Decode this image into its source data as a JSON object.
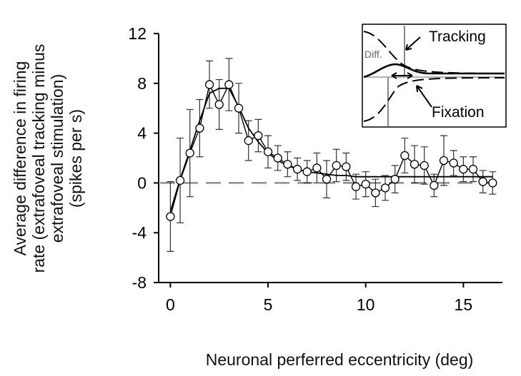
{
  "chart_data": {
    "type": "line",
    "xlabel": "Neuronal perferred eccentricity (deg)",
    "ylabel_lines": [
      "Average difference in firing",
      "rate (extrafoveal tracking minus",
      "extrafoveal stimulation)",
      "(spikes per s)"
    ],
    "xlim": [
      -0.6,
      17
    ],
    "ylim": [
      -8,
      12
    ],
    "x_ticks": [
      0,
      5,
      10,
      15
    ],
    "y_ticks": [
      -8,
      -4,
      0,
      4,
      8,
      12
    ],
    "x_tick_labels": [
      "0",
      "5",
      "10",
      "15"
    ],
    "y_tick_labels": [
      "-8",
      "-4",
      "0",
      "4",
      "8",
      "12"
    ],
    "zero_line": true,
    "series": [
      {
        "style": "points-with-error-bars",
        "points": [
          {
            "x": 0.0,
            "y": -2.7,
            "err": 2.8
          },
          {
            "x": 0.5,
            "y": 0.2,
            "err": 3.4
          },
          {
            "x": 1.0,
            "y": 2.4,
            "err": 3.5
          },
          {
            "x": 1.5,
            "y": 4.4,
            "err": 2.3
          },
          {
            "x": 2.0,
            "y": 7.9,
            "err": 1.9
          },
          {
            "x": 2.5,
            "y": 6.3,
            "err": 2.0
          },
          {
            "x": 3.0,
            "y": 7.9,
            "err": 2.1
          },
          {
            "x": 3.5,
            "y": 6.0,
            "err": 2.0
          },
          {
            "x": 4.0,
            "y": 3.4,
            "err": 1.6
          },
          {
            "x": 4.5,
            "y": 3.8,
            "err": 1.3
          },
          {
            "x": 5.0,
            "y": 2.5,
            "err": 1.3
          },
          {
            "x": 5.5,
            "y": 2.0,
            "err": 1.0
          },
          {
            "x": 6.0,
            "y": 1.5,
            "err": 1.0
          },
          {
            "x": 6.5,
            "y": 1.1,
            "err": 0.9
          },
          {
            "x": 7.0,
            "y": 0.9,
            "err": 0.9
          },
          {
            "x": 7.5,
            "y": 1.2,
            "err": 1.2
          },
          {
            "x": 8.0,
            "y": 0.3,
            "err": 1.5
          },
          {
            "x": 8.5,
            "y": 1.4,
            "err": 1.3
          },
          {
            "x": 9.0,
            "y": 1.3,
            "err": 1.1
          },
          {
            "x": 9.5,
            "y": -0.3,
            "err": 1.0
          },
          {
            "x": 10.0,
            "y": -0.1,
            "err": 1.0
          },
          {
            "x": 10.5,
            "y": -0.8,
            "err": 1.1
          },
          {
            "x": 11.0,
            "y": -0.4,
            "err": 1.0
          },
          {
            "x": 11.5,
            "y": 0.3,
            "err": 1.1
          },
          {
            "x": 12.0,
            "y": 2.2,
            "err": 1.4
          },
          {
            "x": 12.5,
            "y": 1.5,
            "err": 1.5
          },
          {
            "x": 13.0,
            "y": 1.4,
            "err": 1.5
          },
          {
            "x": 13.5,
            "y": -0.2,
            "err": 0.9
          },
          {
            "x": 14.0,
            "y": 1.8,
            "err": 2.0
          },
          {
            "x": 14.5,
            "y": 1.6,
            "err": 1.0
          },
          {
            "x": 15.0,
            "y": 1.1,
            "err": 1.0
          },
          {
            "x": 15.5,
            "y": 1.1,
            "err": 1.0
          },
          {
            "x": 16.0,
            "y": 0.1,
            "err": 0.9
          },
          {
            "x": 16.5,
            "y": 0.0,
            "err": 0.9
          }
        ]
      },
      {
        "style": "smooth-fit-line",
        "x": [
          0.0,
          0.5,
          1.0,
          1.5,
          2.0,
          2.5,
          3.0,
          3.5,
          4.0,
          4.5,
          5.0,
          5.5,
          6.0,
          6.5,
          7.0,
          7.5,
          8.0,
          8.5,
          9.0,
          9.5,
          10.0,
          10.5,
          11.0,
          11.5,
          12.0,
          12.5,
          13.0,
          13.5,
          14.0,
          14.5,
          15.0,
          15.5,
          16.0,
          16.5
        ],
        "y": [
          -2.3,
          0.3,
          2.6,
          5.0,
          7.2,
          7.6,
          7.6,
          6.1,
          4.4,
          3.3,
          2.4,
          1.8,
          1.4,
          1.1,
          0.9,
          0.8,
          0.7,
          0.6,
          0.6,
          0.5,
          0.5,
          0.5,
          0.5,
          0.5,
          0.5,
          0.5,
          0.5,
          0.5,
          0.5,
          0.5,
          0.5,
          0.5,
          0.5,
          0.5
        ]
      }
    ],
    "inset": {
      "labels": {
        "tracking": "Tracking",
        "fixation": "Fixation",
        "diff": "Diff."
      }
    }
  }
}
